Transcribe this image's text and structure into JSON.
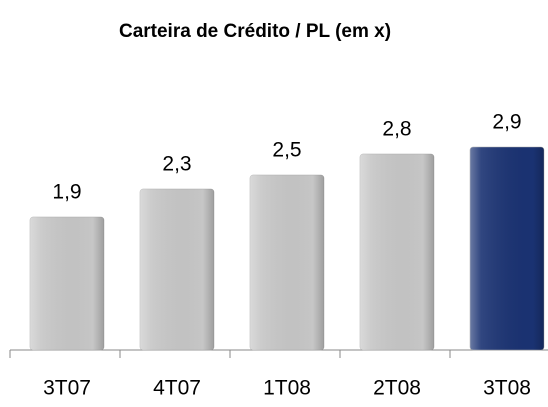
{
  "chart_data": {
    "type": "bar",
    "title": "Carteira de Crédito / PL (em x)",
    "categories": [
      "3T07",
      "4T07",
      "1T08",
      "2T08",
      "3T08"
    ],
    "values": [
      1.9,
      2.3,
      2.5,
      2.8,
      2.9
    ],
    "value_labels": [
      "1,9",
      "2,3",
      "2,5",
      "2,8",
      "2,9"
    ],
    "colors": [
      "#c6c6c6",
      "#c6c6c6",
      "#c6c6c6",
      "#c6c6c6",
      "#1a3272"
    ],
    "ylim": [
      0,
      5
    ]
  }
}
